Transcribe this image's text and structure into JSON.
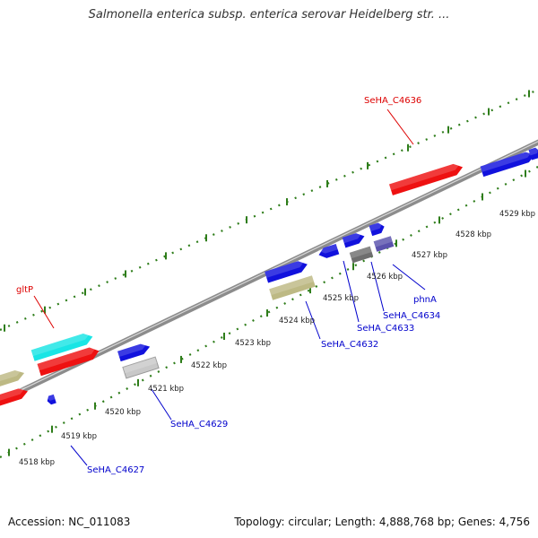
{
  "map": {
    "title": "Salmonella enterica subsp. enterica serovar Heidelberg str. ...",
    "accession": "Accession: NC_011083",
    "info": "Topology: circular; Length: 4,888,768 bp; Genes: 4,756"
  },
  "colors": {
    "backbone": "#8c8c8c",
    "tick_marks": "#2e7d1a",
    "forward_gene": "#ee1111",
    "reverse_gene": "#1111dd",
    "khaki_gene": "#bdb984",
    "cyan_gene": "#19e5e5",
    "gray_gene": "#c8c8c8",
    "dark_gray_gene": "#6e6e6e",
    "slate_gene": "#5a52ad",
    "label_forward": "#dd0000",
    "label_reverse": "#0000cc"
  },
  "tick_labels": [
    "4518 kbp",
    "4519 kbp",
    "4520 kbp",
    "4521 kbp",
    "4522 kbp",
    "4523 kbp",
    "4524 kbp",
    "4525 kbp",
    "4526 kbp",
    "4527 kbp",
    "4528 kbp",
    "4529 kbp"
  ],
  "gene_labels": [
    {
      "id": "SeHA_C4636",
      "text": "SeHA_C4636",
      "strand": "forward"
    },
    {
      "id": "gltP",
      "text": "gltP",
      "strand": "forward"
    },
    {
      "id": "phnA",
      "text": "phnA",
      "strand": "reverse"
    },
    {
      "id": "SeHA_C4634",
      "text": "SeHA_C4634",
      "strand": "reverse"
    },
    {
      "id": "SeHA_C4633",
      "text": "SeHA_C4633",
      "strand": "reverse"
    },
    {
      "id": "SeHA_C4632",
      "text": "SeHA_C4632",
      "strand": "reverse"
    },
    {
      "id": "SeHA_C4629",
      "text": "SeHA_C4629",
      "strand": "reverse"
    },
    {
      "id": "SeHA_C4627",
      "text": "SeHA_C4627",
      "strand": "reverse"
    }
  ]
}
